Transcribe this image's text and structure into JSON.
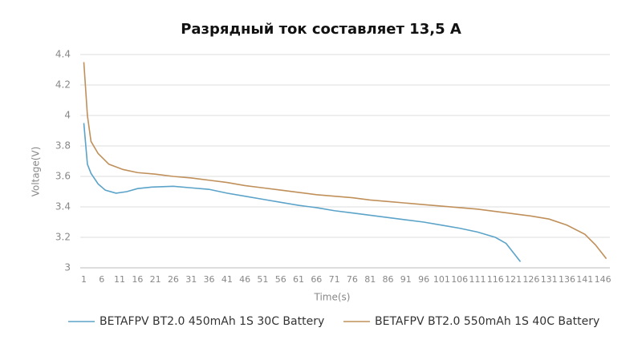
{
  "chart_data": {
    "type": "line",
    "title": "Разрядный ток составляет 13,5 А",
    "x_label": "Time(s)",
    "y_label": "Voltage(V)",
    "xlim": [
      0,
      148
    ],
    "xticks": [
      1,
      6,
      11,
      16,
      21,
      26,
      31,
      36,
      41,
      46,
      51,
      56,
      61,
      66,
      71,
      76,
      81,
      86,
      91,
      96,
      101,
      106,
      111,
      116,
      121,
      126,
      131,
      136,
      141,
      146
    ],
    "ylim": [
      3,
      4.4
    ],
    "yticks": [
      3,
      3.2,
      3.4,
      3.6,
      3.8,
      4,
      4.2,
      4.4
    ],
    "grid": true,
    "legend": "bottom",
    "series": [
      {
        "name": "BETAFPV BT2.0 450mAh 1S 30C Battery",
        "color": "#5ba3c9",
        "x": [
          1,
          2,
          3,
          5,
          7,
          10,
          13,
          16,
          20,
          26,
          31,
          36,
          41,
          46,
          51,
          56,
          61,
          66,
          71,
          76,
          81,
          86,
          91,
          96,
          101,
          106,
          111,
          116,
          119,
          121,
          123
        ],
        "values": [
          3.95,
          3.68,
          3.62,
          3.55,
          3.51,
          3.49,
          3.5,
          3.52,
          3.53,
          3.535,
          3.525,
          3.515,
          3.49,
          3.47,
          3.45,
          3.43,
          3.41,
          3.395,
          3.375,
          3.36,
          3.345,
          3.33,
          3.315,
          3.3,
          3.28,
          3.26,
          3.235,
          3.2,
          3.16,
          3.1,
          3.04
        ]
      },
      {
        "name": "BETAFPV BT2.0 550mAh 1S 40C Battery",
        "color": "#c0905a",
        "x": [
          1,
          2,
          3,
          5,
          8,
          12,
          16,
          21,
          26,
          31,
          36,
          41,
          46,
          51,
          56,
          61,
          66,
          71,
          76,
          81,
          86,
          91,
          96,
          101,
          106,
          111,
          116,
          121,
          126,
          131,
          136,
          141,
          144,
          147
        ],
        "values": [
          4.35,
          4.0,
          3.83,
          3.75,
          3.68,
          3.645,
          3.625,
          3.615,
          3.6,
          3.59,
          3.575,
          3.56,
          3.54,
          3.525,
          3.51,
          3.495,
          3.48,
          3.47,
          3.46,
          3.445,
          3.435,
          3.425,
          3.415,
          3.405,
          3.395,
          3.385,
          3.37,
          3.355,
          3.34,
          3.32,
          3.28,
          3.22,
          3.15,
          3.06
        ]
      }
    ]
  }
}
